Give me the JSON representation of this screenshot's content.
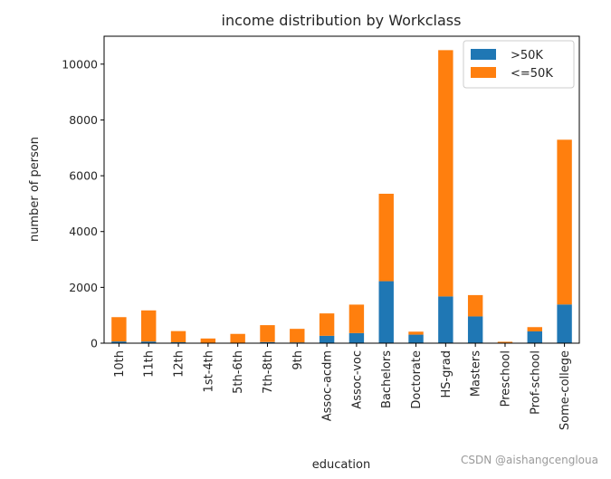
{
  "chart_data": {
    "type": "bar",
    "stacked": true,
    "title": "income distribution by Workclass",
    "xlabel": "education",
    "ylabel": "number of person",
    "ylim": [
      0,
      11000
    ],
    "yticks": [
      0,
      2000,
      4000,
      6000,
      8000,
      10000
    ],
    "legend_position": "top-right",
    "categories": [
      "10th",
      "11th",
      "12th",
      "1st-4th",
      "5th-6th",
      "7th-8th",
      "9th",
      "Assoc-acdm",
      "Assoc-voc",
      "Bachelors",
      "Doctorate",
      "HS-grad",
      "Masters",
      "Preschool",
      "Prof-school",
      "Some-college"
    ],
    "series": [
      {
        "name": ">50K",
        "color": "#1f77b4",
        "values": [
          62,
          60,
          33,
          6,
          16,
          40,
          27,
          265,
          361,
          2221,
          306,
          1675,
          959,
          0,
          423,
          1387
        ]
      },
      {
        "name": "<=50K",
        "color": "#ff7f0e",
        "values": [
          871,
          1115,
          400,
          162,
          317,
          606,
          487,
          802,
          1021,
          3134,
          107,
          8826,
          764,
          51,
          153,
          5904
        ]
      }
    ]
  },
  "watermark": "CSDN @aishangcengloua"
}
